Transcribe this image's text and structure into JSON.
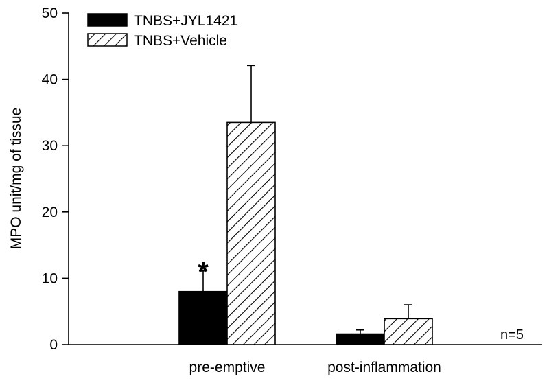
{
  "chart_data": {
    "type": "bar",
    "title": "",
    "xlabel": "",
    "ylabel": "MPO unit/mg of tissue",
    "ylim": [
      0,
      50
    ],
    "yticks": [
      0,
      10,
      20,
      30,
      40,
      50
    ],
    "categories": [
      "pre-emptive",
      "post-inflammation"
    ],
    "series": [
      {
        "name": "TNBS+JYL1421",
        "fill": "solid",
        "color": "#000000",
        "values": [
          8.0,
          1.6
        ],
        "errors": [
          3.1,
          0.6
        ]
      },
      {
        "name": "TNBS+Vehicle",
        "fill": "hatched",
        "color": "#000000",
        "values": [
          33.5,
          3.9
        ],
        "errors": [
          8.6,
          2.1
        ]
      }
    ],
    "annotations": [
      {
        "text": "*",
        "category": "pre-emptive",
        "series": "TNBS+JYL1421"
      },
      {
        "text": "n=5"
      }
    ],
    "legend_position": "top-left",
    "grid": false
  }
}
